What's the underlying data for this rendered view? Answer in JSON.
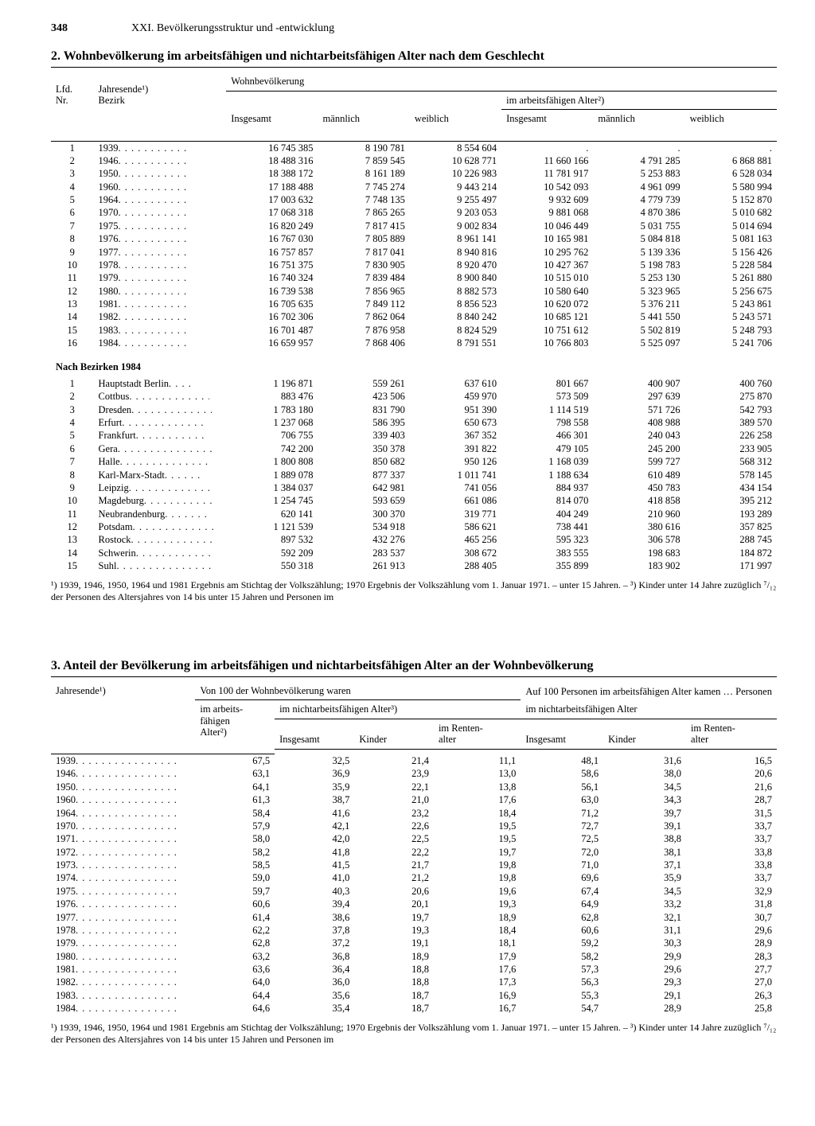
{
  "page": {
    "number": "348",
    "chapter": "XXI. Bevölkerungsstruktur und -entwicklung"
  },
  "table2": {
    "title": "2. Wohnbevölkerung im arbeitsfähigen und nichtarbeitsfähigen Alter nach dem Geschlecht",
    "head": {
      "lfd": "Lfd.",
      "nr": "Nr.",
      "jahr": "Jahresende¹)",
      "bezirk": "Bezirk",
      "wohn": "Wohnbevölkerung",
      "insg": "Insgesamt",
      "maenn": "männlich",
      "weib": "weiblich",
      "arbf": "im arbeitsfähigen Alter²)"
    },
    "years": [
      {
        "n": "1",
        "y": "1939",
        "ins": "16 745 385",
        "m": "8 190 781",
        "w": "8 554 604",
        "ai": ".",
        "am": ".",
        "aw": "."
      },
      {
        "n": "2",
        "y": "1946",
        "ins": "18 488 316",
        "m": "7 859 545",
        "w": "10 628 771",
        "ai": "11 660 166",
        "am": "4 791 285",
        "aw": "6 868 881"
      },
      {
        "n": "3",
        "y": "1950",
        "ins": "18 388 172",
        "m": "8 161 189",
        "w": "10 226 983",
        "ai": "11 781 917",
        "am": "5 253 883",
        "aw": "6 528 034"
      },
      {
        "n": "4",
        "y": "1960",
        "ins": "17 188 488",
        "m": "7 745 274",
        "w": "9 443 214",
        "ai": "10 542 093",
        "am": "4 961 099",
        "aw": "5 580 994"
      },
      {
        "n": "5",
        "y": "1964",
        "ins": "17 003 632",
        "m": "7 748 135",
        "w": "9 255 497",
        "ai": "9 932 609",
        "am": "4 779 739",
        "aw": "5 152 870"
      },
      {
        "n": "6",
        "y": "1970",
        "ins": "17 068 318",
        "m": "7 865 265",
        "w": "9 203 053",
        "ai": "9 881 068",
        "am": "4 870 386",
        "aw": "5 010 682"
      },
      {
        "n": "7",
        "y": "1975",
        "ins": "16 820 249",
        "m": "7 817 415",
        "w": "9 002 834",
        "ai": "10 046 449",
        "am": "5 031 755",
        "aw": "5 014 694"
      },
      {
        "n": "8",
        "y": "1976",
        "ins": "16 767 030",
        "m": "7 805 889",
        "w": "8 961 141",
        "ai": "10 165 981",
        "am": "5 084 818",
        "aw": "5 081 163"
      },
      {
        "n": "9",
        "y": "1977",
        "ins": "16 757 857",
        "m": "7 817 041",
        "w": "8 940 816",
        "ai": "10 295 762",
        "am": "5 139 336",
        "aw": "5 156 426"
      },
      {
        "n": "10",
        "y": "1978",
        "ins": "16 751 375",
        "m": "7 830 905",
        "w": "8 920 470",
        "ai": "10 427 367",
        "am": "5 198 783",
        "aw": "5 228 584"
      },
      {
        "n": "11",
        "y": "1979",
        "ins": "16 740 324",
        "m": "7 839 484",
        "w": "8 900 840",
        "ai": "10 515 010",
        "am": "5 253 130",
        "aw": "5 261 880"
      },
      {
        "n": "12",
        "y": "1980",
        "ins": "16 739 538",
        "m": "7 856 965",
        "w": "8 882 573",
        "ai": "10 580 640",
        "am": "5 323 965",
        "aw": "5 256 675"
      },
      {
        "n": "13",
        "y": "1981",
        "ins": "16 705 635",
        "m": "7 849 112",
        "w": "8 856 523",
        "ai": "10 620 072",
        "am": "5 376 211",
        "aw": "5 243 861"
      },
      {
        "n": "14",
        "y": "1982",
        "ins": "16 702 306",
        "m": "7 862 064",
        "w": "8 840 242",
        "ai": "10 685 121",
        "am": "5 441 550",
        "aw": "5 243 571"
      },
      {
        "n": "15",
        "y": "1983",
        "ins": "16 701 487",
        "m": "7 876 958",
        "w": "8 824 529",
        "ai": "10 751 612",
        "am": "5 502 819",
        "aw": "5 248 793"
      },
      {
        "n": "16",
        "y": "1984",
        "ins": "16 659 957",
        "m": "7 868 406",
        "w": "8 791 551",
        "ai": "10 766 803",
        "am": "5 525 097",
        "aw": "5 241 706"
      }
    ],
    "bezirk_head": "Nach Bezirken 1984",
    "bezirke": [
      {
        "n": "1",
        "y": "Hauptstadt Berlin",
        "ins": "1 196 871",
        "m": "559 261",
        "w": "637 610",
        "ai": "801 667",
        "am": "400 907",
        "aw": "400 760"
      },
      {
        "n": "2",
        "y": "Cottbus",
        "ins": "883 476",
        "m": "423 506",
        "w": "459 970",
        "ai": "573 509",
        "am": "297 639",
        "aw": "275 870"
      },
      {
        "n": "3",
        "y": "Dresden",
        "ins": "1 783 180",
        "m": "831 790",
        "w": "951 390",
        "ai": "1 114 519",
        "am": "571 726",
        "aw": "542 793"
      },
      {
        "n": "4",
        "y": "Erfurt",
        "ins": "1 237 068",
        "m": "586 395",
        "w": "650 673",
        "ai": "798 558",
        "am": "408 988",
        "aw": "389 570"
      },
      {
        "n": "5",
        "y": "Frankfurt",
        "ins": "706 755",
        "m": "339 403",
        "w": "367 352",
        "ai": "466 301",
        "am": "240 043",
        "aw": "226 258"
      },
      {
        "n": "6",
        "y": "Gera",
        "ins": "742 200",
        "m": "350 378",
        "w": "391 822",
        "ai": "479 105",
        "am": "245 200",
        "aw": "233 905"
      },
      {
        "n": "7",
        "y": "Halle",
        "ins": "1 800 808",
        "m": "850 682",
        "w": "950 126",
        "ai": "1 168 039",
        "am": "599 727",
        "aw": "568 312"
      },
      {
        "n": "8",
        "y": "Karl-Marx-Stadt",
        "ins": "1 889 078",
        "m": "877 337",
        "w": "1 011 741",
        "ai": "1 188 634",
        "am": "610 489",
        "aw": "578 145"
      },
      {
        "n": "9",
        "y": "Leipzig",
        "ins": "1 384 037",
        "m": "642 981",
        "w": "741 056",
        "ai": "884 937",
        "am": "450 783",
        "aw": "434 154"
      },
      {
        "n": "10",
        "y": "Magdeburg",
        "ins": "1 254 745",
        "m": "593 659",
        "w": "661 086",
        "ai": "814 070",
        "am": "418 858",
        "aw": "395 212"
      },
      {
        "n": "11",
        "y": "Neubrandenburg",
        "ins": "620 141",
        "m": "300 370",
        "w": "319 771",
        "ai": "404 249",
        "am": "210 960",
        "aw": "193 289"
      },
      {
        "n": "12",
        "y": "Potsdam",
        "ins": "1 121 539",
        "m": "534 918",
        "w": "586 621",
        "ai": "738 441",
        "am": "380 616",
        "aw": "357 825"
      },
      {
        "n": "13",
        "y": "Rostock",
        "ins": "897 532",
        "m": "432 276",
        "w": "465 256",
        "ai": "595 323",
        "am": "306 578",
        "aw": "288 745"
      },
      {
        "n": "14",
        "y": "Schwerin",
        "ins": "592 209",
        "m": "283 537",
        "w": "308 672",
        "ai": "383 555",
        "am": "198 683",
        "aw": "184 872"
      },
      {
        "n": "15",
        "y": "Suhl",
        "ins": "550 318",
        "m": "261 913",
        "w": "288 405",
        "ai": "355 899",
        "am": "183 902",
        "aw": "171 997"
      }
    ],
    "footnote": "¹) 1939, 1946, 1950, 1964 und 1981 Ergebnis am Stichtag der Volkszählung; 1970 Ergebnis der Volkszählung vom 1. Januar 1971. – unter 15 Jahren. – ³) Kinder unter 14 Jahre zuzüglich ⁷/₁₂ der Personen des Altersjahres von 14 bis unter 15 Jahren und Personen im"
  },
  "table3": {
    "title": "3. Anteil der Bevölkerung im arbeitsfähigen und nichtarbeitsfähigen Alter an der Wohnbevölkerung",
    "head": {
      "jahr": "Jahresende¹)",
      "von100": "Von 100 der Wohnbevölkerung waren",
      "auf100": "Auf 100 Personen im arbeitsfähigen Alter kamen … Personen",
      "sub_auf100": "im nichtarbeitsfähigen Alter",
      "arbf": "im arbeits-\nfähigen\nAlter²)",
      "nichtarbf": "im nichtarbeitsfähigen Alter³)",
      "insg": "Insgesamt",
      "kinder": "Kinder",
      "renten": "im Renten-\nalter"
    },
    "rows": [
      {
        "y": "1939",
        "a": "67,5",
        "ni": "32,5",
        "nk": "21,4",
        "nr": "11,1",
        "bi": "48,1",
        "bk": "31,6",
        "br": "16,5"
      },
      {
        "y": "1946",
        "a": "63,1",
        "ni": "36,9",
        "nk": "23,9",
        "nr": "13,0",
        "bi": "58,6",
        "bk": "38,0",
        "br": "20,6"
      },
      {
        "y": "1950",
        "a": "64,1",
        "ni": "35,9",
        "nk": "22,1",
        "nr": "13,8",
        "bi": "56,1",
        "bk": "34,5",
        "br": "21,6"
      },
      {
        "y": "1960",
        "a": "61,3",
        "ni": "38,7",
        "nk": "21,0",
        "nr": "17,6",
        "bi": "63,0",
        "bk": "34,3",
        "br": "28,7"
      },
      {
        "y": "1964",
        "a": "58,4",
        "ni": "41,6",
        "nk": "23,2",
        "nr": "18,4",
        "bi": "71,2",
        "bk": "39,7",
        "br": "31,5"
      },
      {
        "y": "1970",
        "a": "57,9",
        "ni": "42,1",
        "nk": "22,6",
        "nr": "19,5",
        "bi": "72,7",
        "bk": "39,1",
        "br": "33,7"
      },
      {
        "y": "1971",
        "a": "58,0",
        "ni": "42,0",
        "nk": "22,5",
        "nr": "19,5",
        "bi": "72,5",
        "bk": "38,8",
        "br": "33,7"
      },
      {
        "y": "1972",
        "a": "58,2",
        "ni": "41,8",
        "nk": "22,2",
        "nr": "19,7",
        "bi": "72,0",
        "bk": "38,1",
        "br": "33,8"
      },
      {
        "y": "1973",
        "a": "58,5",
        "ni": "41,5",
        "nk": "21,7",
        "nr": "19,8",
        "bi": "71,0",
        "bk": "37,1",
        "br": "33,8"
      },
      {
        "y": "1974",
        "a": "59,0",
        "ni": "41,0",
        "nk": "21,2",
        "nr": "19,8",
        "bi": "69,6",
        "bk": "35,9",
        "br": "33,7"
      },
      {
        "y": "1975",
        "a": "59,7",
        "ni": "40,3",
        "nk": "20,6",
        "nr": "19,6",
        "bi": "67,4",
        "bk": "34,5",
        "br": "32,9"
      },
      {
        "y": "1976",
        "a": "60,6",
        "ni": "39,4",
        "nk": "20,1",
        "nr": "19,3",
        "bi": "64,9",
        "bk": "33,2",
        "br": "31,8"
      },
      {
        "y": "1977",
        "a": "61,4",
        "ni": "38,6",
        "nk": "19,7",
        "nr": "18,9",
        "bi": "62,8",
        "bk": "32,1",
        "br": "30,7"
      },
      {
        "y": "1978",
        "a": "62,2",
        "ni": "37,8",
        "nk": "19,3",
        "nr": "18,4",
        "bi": "60,6",
        "bk": "31,1",
        "br": "29,6"
      },
      {
        "y": "1979",
        "a": "62,8",
        "ni": "37,2",
        "nk": "19,1",
        "nr": "18,1",
        "bi": "59,2",
        "bk": "30,3",
        "br": "28,9"
      },
      {
        "y": "1980",
        "a": "63,2",
        "ni": "36,8",
        "nk": "18,9",
        "nr": "17,9",
        "bi": "58,2",
        "bk": "29,9",
        "br": "28,3"
      },
      {
        "y": "1981",
        "a": "63,6",
        "ni": "36,4",
        "nk": "18,8",
        "nr": "17,6",
        "bi": "57,3",
        "bk": "29,6",
        "br": "27,7"
      },
      {
        "y": "1982",
        "a": "64,0",
        "ni": "36,0",
        "nk": "18,8",
        "nr": "17,3",
        "bi": "56,3",
        "bk": "29,3",
        "br": "27,0"
      },
      {
        "y": "1983",
        "a": "64,4",
        "ni": "35,6",
        "nk": "18,7",
        "nr": "16,9",
        "bi": "55,3",
        "bk": "29,1",
        "br": "26,3"
      },
      {
        "y": "1984",
        "a": "64,6",
        "ni": "35,4",
        "nk": "18,7",
        "nr": "16,7",
        "bi": "54,7",
        "bk": "28,9",
        "br": "25,8"
      }
    ],
    "footnote": "¹) 1939, 1946, 1950, 1964 und 1981 Ergebnis am Stichtag der Volkszählung; 1970 Ergebnis der Volkszählung vom 1. Januar 1971. – unter 15 Jahren. – ³) Kinder unter 14 Jahre zuzüglich ⁷/₁₂ der Personen des Altersjahres von 14 bis unter 15 Jahren und Personen im"
  }
}
